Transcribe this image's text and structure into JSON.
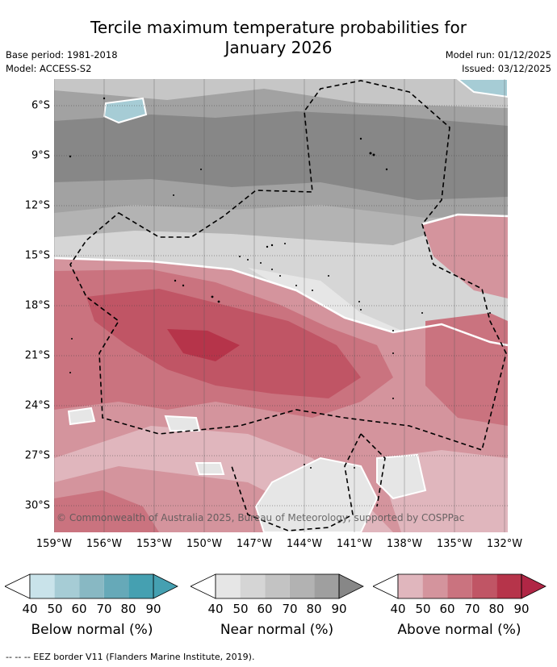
{
  "title_line1": "Tercile maximum temperature probabilities for",
  "title_line2": "January 2026",
  "base_period": "Base period: 1981-2018",
  "model": "Model: ACCESS-S2",
  "model_run": "Model run: 01/12/2025",
  "issued": "Issued: 03/12/2025",
  "copyright": "© Commonwealth of Australia 2025, Bureau of Meteorology, supported by COSPPac",
  "latitude_labels": [
    "6°S",
    "9°S",
    "12°S",
    "15°S",
    "18°S",
    "21°S",
    "24°S",
    "27°S",
    "30°S"
  ],
  "longitude_labels": [
    "159°W",
    "156°W",
    "153°W",
    "150°W",
    "147°W",
    "144°W",
    "141°W",
    "138°W",
    "135°W",
    "132°W"
  ],
  "legend": {
    "ticks": [
      "40",
      "50",
      "60",
      "70",
      "80",
      "90"
    ],
    "below": {
      "title": "Below normal (%)",
      "colors": [
        "#ffffff",
        "#c9e3ea",
        "#a6ccd5",
        "#88b8c3",
        "#66a9b8",
        "#45a0b1"
      ]
    },
    "near": {
      "title": "Near normal (%)",
      "colors": [
        "#ffffff",
        "#e6e6e6",
        "#d5d5d5",
        "#c3c3c3",
        "#b2b2b2",
        "#9f9f9f",
        "#878787"
      ]
    },
    "above": {
      "title": "Above normal (%)",
      "colors": [
        "#ffffff",
        "#e0b6bd",
        "#d4949d",
        "#ca737f",
        "#c05565",
        "#b6344a",
        "#b02645"
      ]
    }
  },
  "footer": "--  --  -- EEZ border V11 (Flanders Marine Institute, 2019)."
}
